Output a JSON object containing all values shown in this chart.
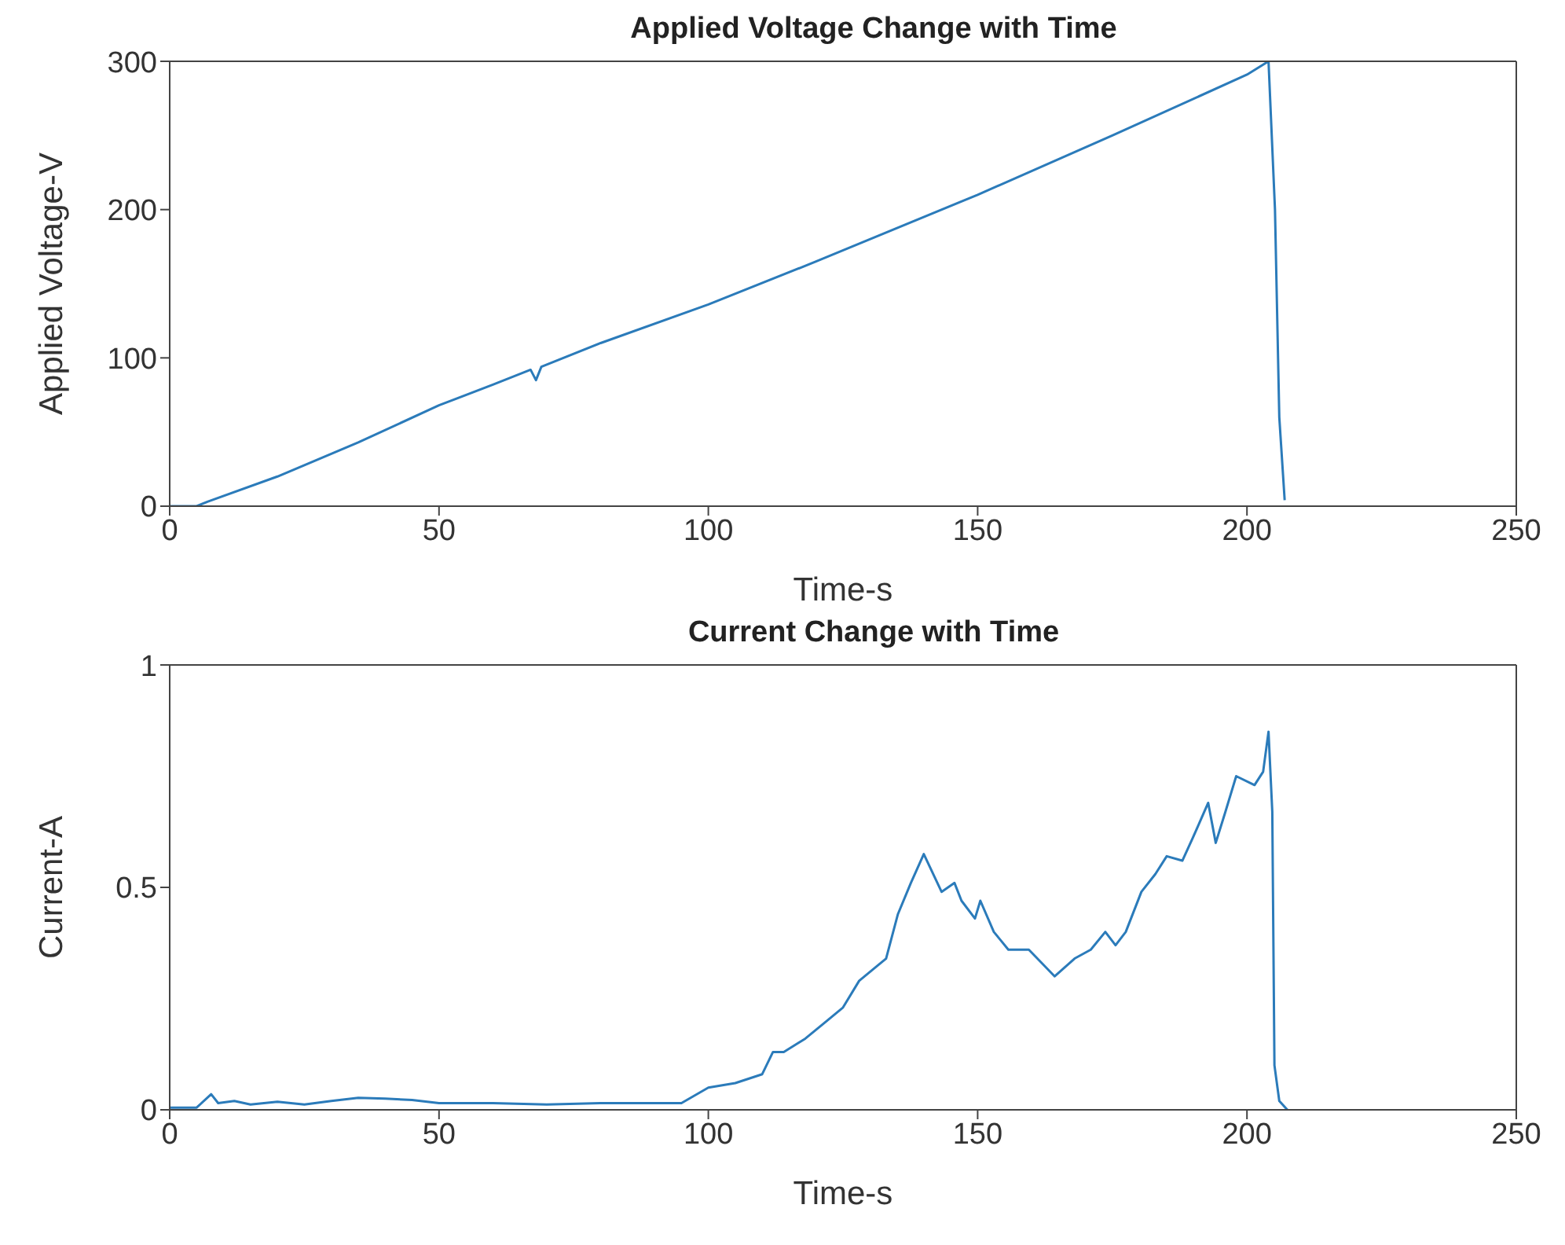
{
  "chart_data": [
    {
      "type": "line",
      "title": "Applied Voltage Change with Time",
      "xlabel": "Time-s",
      "ylabel": "Applied Voltage-V",
      "xlim": [
        0,
        250
      ],
      "xticks": [
        0,
        50,
        100,
        150,
        200,
        250
      ],
      "ylim": [
        0,
        300
      ],
      "yticks": [
        0,
        100,
        200,
        300
      ],
      "grid": false,
      "marker": "none",
      "line_style": "solid",
      "series": [
        {
          "color": "#2b7bba",
          "x": [
            0,
            5,
            7,
            20,
            35,
            50,
            60,
            67,
            68,
            69,
            80,
            100,
            120,
            150,
            175,
            200,
            204,
            205.2,
            206,
            207
          ],
          "values": [
            0,
            0,
            3,
            20,
            43,
            68,
            82,
            92,
            85,
            94,
            110,
            136,
            165,
            210,
            250,
            291,
            300,
            200,
            60,
            4
          ]
        }
      ]
    },
    {
      "type": "line",
      "title": "Current Change with Time",
      "xlabel": "Time-s",
      "ylabel": "Current-A",
      "xlim": [
        0,
        250
      ],
      "xticks": [
        0,
        50,
        100,
        150,
        200,
        250
      ],
      "ylim": [
        0,
        1
      ],
      "yticks": [
        0,
        0.5,
        1
      ],
      "grid": false,
      "marker": "none",
      "line_style": "solid",
      "series": [
        {
          "color": "#2b7bba",
          "x": [
            0,
            5,
            7.7,
            9,
            12,
            15,
            20,
            25,
            30,
            35,
            40,
            45,
            50,
            60,
            70,
            80,
            90,
            95,
            100,
            105,
            110,
            112,
            114,
            118,
            122,
            125,
            128,
            131,
            133,
            135.2,
            137.6,
            140,
            143.3,
            145.7,
            147,
            149.5,
            150.5,
            153,
            155.7,
            159.5,
            164.3,
            168,
            171,
            173.7,
            175.6,
            177.5,
            180.4,
            183,
            185.1,
            188,
            189.9,
            192.8,
            194.2,
            196,
            198,
            201.4,
            203,
            204,
            204.7,
            205.1,
            206,
            207.5
          ],
          "values": [
            0.005,
            0.005,
            0.035,
            0.015,
            0.02,
            0.012,
            0.018,
            0.012,
            0.02,
            0.027,
            0.025,
            0.022,
            0.015,
            0.015,
            0.012,
            0.015,
            0.015,
            0.015,
            0.05,
            0.06,
            0.08,
            0.13,
            0.13,
            0.16,
            0.2,
            0.23,
            0.29,
            0.32,
            0.34,
            0.44,
            0.51,
            0.575,
            0.49,
            0.51,
            0.47,
            0.43,
            0.47,
            0.4,
            0.36,
            0.36,
            0.3,
            0.34,
            0.36,
            0.4,
            0.37,
            0.4,
            0.49,
            0.53,
            0.57,
            0.56,
            0.61,
            0.69,
            0.6,
            0.67,
            0.75,
            0.73,
            0.76,
            0.85,
            0.67,
            0.1,
            0.02,
            0
          ]
        }
      ]
    }
  ]
}
